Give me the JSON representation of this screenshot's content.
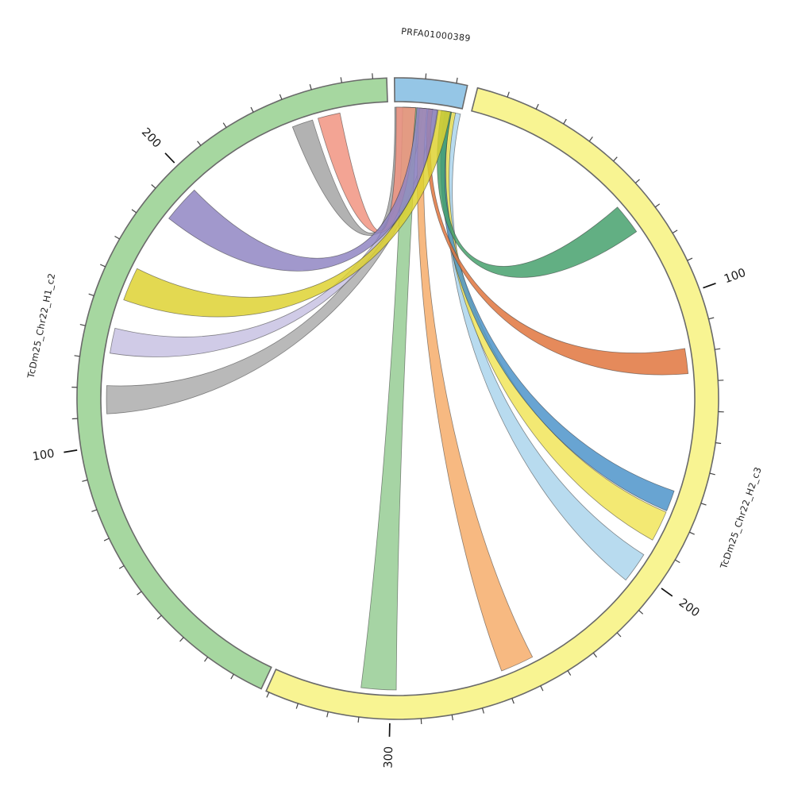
{
  "plot_title": "",
  "chart_data": {
    "type": "circos-chord",
    "description": "Circular genome alignment (chord) plot: contig PRFA01000389 aligned to two haplotype chromosomes",
    "deg_per_unit": 0.5567,
    "geometry_note": "angles in degrees, screen-clockwise from east; positions in axis units shown on tick labels",
    "sequences": [
      {
        "id": "H1",
        "label": "TcDm25_Chr22_H1_c2",
        "color": "#a6d7a0",
        "angle_start": 115.2,
        "length": 274.5
      },
      {
        "id": "contig",
        "label": "PRFA01000389",
        "color": "#95c6e6",
        "angle_start": 269.4,
        "length": 23.6
      },
      {
        "id": "H2",
        "label": "TcDm25_Chr22_H2_c3",
        "color": "#f8f492",
        "angle_start": 284.4,
        "length": 341
      }
    ],
    "axis": {
      "tick_minor_every": 10,
      "tick_major_every": 100,
      "major_tick_labels": {
        "H1": [
          "100",
          "200"
        ],
        "H2": [
          "100",
          "200",
          "300"
        ],
        "contig": []
      }
    },
    "chords": [
      {
        "name": "gray-top",
        "color": "#a3a3a3",
        "a": [
          "H1",
          240.0,
          247.5
        ],
        "b": [
          "contig",
          0.0,
          7.6
        ]
      },
      {
        "name": "gray-left",
        "color": "#ababab",
        "a": [
          "H1",
          111.0,
          121.0
        ],
        "b": [
          "contig",
          8.0,
          15.0
        ]
      },
      {
        "name": "lavender",
        "color": "#c7c1e2",
        "a": [
          "H1",
          132.5,
          141.5
        ],
        "b": [
          "contig",
          10.0,
          13.5
        ]
      },
      {
        "name": "pale-green",
        "color": "#95cc92",
        "a": [
          "H2",
          298.0,
          310.5
        ],
        "b": [
          "contig",
          2.8,
          8.4
        ]
      },
      {
        "name": "sandy-orange",
        "color": "#f6ab69",
        "a": [
          "H2",
          248.0,
          260.0
        ],
        "b": [
          "contig",
          8.8,
          11.4
        ]
      },
      {
        "name": "light-blue",
        "color": "#aad4ec",
        "a": [
          "H2",
          194.0,
          205.0
        ],
        "b": [
          "contig",
          20.8,
          23.4
        ]
      },
      {
        "name": "yellow-right",
        "color": "#f1e558",
        "a": [
          "H2",
          177.0,
          188.0
        ],
        "b": [
          "contig",
          19.4,
          21.6
        ]
      },
      {
        "name": "steel-blue",
        "color": "#4b93c9",
        "a": [
          "H2",
          169.0,
          176.5
        ],
        "b": [
          "contig",
          17.8,
          20.0
        ]
      },
      {
        "name": "dark-green",
        "color": "#44a06b",
        "a": [
          "H2",
          62.0,
          73.0
        ],
        "b": [
          "contig",
          16.5,
          20.2
        ]
      },
      {
        "name": "orange-red",
        "color": "#e0743c",
        "a": [
          "H2",
          118.0,
          127.0
        ],
        "b": [
          "contig",
          11.8,
          13.4
        ]
      },
      {
        "name": "salmon",
        "color": "#f19280",
        "a": [
          "H1",
          249.5,
          257.5
        ],
        "b": [
          "contig",
          0.5,
          7.4
        ]
      },
      {
        "name": "purple",
        "color": "#8f84c2",
        "a": [
          "H1",
          185.0,
          198.5
        ],
        "b": [
          "contig",
          7.8,
          15.2
        ]
      },
      {
        "name": "yellow-left",
        "color": "#ded230",
        "a": [
          "H1",
          152.0,
          164.0
        ],
        "b": [
          "contig",
          15.4,
          19.8
        ]
      }
    ],
    "style": {
      "arc_stroke": "#6a6a6a",
      "tick_color": "#444444",
      "major_tick_color": "#111111",
      "tick_label_color": "#1a1a1a",
      "ribbon_opacity": 0.84,
      "background": "#ffffff"
    },
    "layout": {
      "center": [
        501,
        502
      ],
      "radius_outer": 404,
      "radius_inner": 374,
      "ribbon_radius": 367,
      "control_radius": 162
    }
  }
}
